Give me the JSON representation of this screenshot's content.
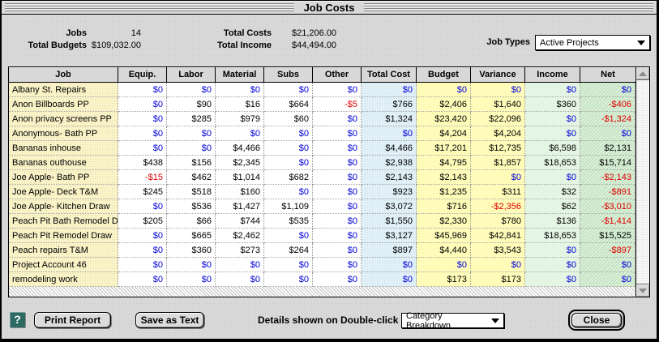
{
  "window": {
    "title": "Job Costs"
  },
  "summary": {
    "jobs_label": "Jobs",
    "jobs_value": "14",
    "total_budgets_label": "Total Budgets",
    "total_budgets_value": "$109,032.00",
    "total_costs_label": "Total Costs",
    "total_costs_value": "$21,206.00",
    "total_income_label": "Total Income",
    "total_income_value": "$44,494.00",
    "job_types_label": "Job Types",
    "job_types_value": "Active Projects"
  },
  "table": {
    "columns": [
      "Job",
      "Equip.",
      "Labor",
      "Material",
      "Subs",
      "Other",
      "Total Cost",
      "Budget",
      "Variance",
      "Income",
      "Net"
    ],
    "rows": [
      {
        "job": "Albany St. Repairs",
        "values": [
          "$0",
          "$0",
          "$0",
          "$0",
          "$0",
          "$0",
          "$0",
          "$0",
          "$0",
          "$0"
        ]
      },
      {
        "job": "Anon Billboards PP",
        "values": [
          "$0",
          "$90",
          "$16",
          "$664",
          "-$5",
          "$766",
          "$2,406",
          "$1,640",
          "$360",
          "-$406"
        ]
      },
      {
        "job": "Anon privacy screens PP",
        "values": [
          "$0",
          "$285",
          "$979",
          "$60",
          "$0",
          "$1,324",
          "$23,420",
          "$22,096",
          "$0",
          "-$1,324"
        ]
      },
      {
        "job": "Anonymous- Bath PP",
        "values": [
          "$0",
          "$0",
          "$0",
          "$0",
          "$0",
          "$0",
          "$4,204",
          "$4,204",
          "$0",
          "$0"
        ]
      },
      {
        "job": "Bananas inhouse",
        "values": [
          "$0",
          "$0",
          "$4,466",
          "$0",
          "$0",
          "$4,466",
          "$17,201",
          "$12,735",
          "$6,598",
          "$2,131"
        ]
      },
      {
        "job": "Bananas outhouse",
        "values": [
          "$438",
          "$156",
          "$2,345",
          "$0",
          "$0",
          "$2,938",
          "$4,795",
          "$1,857",
          "$18,653",
          "$15,714"
        ]
      },
      {
        "job": "Joe Apple- Bath PP",
        "values": [
          "-$15",
          "$462",
          "$1,014",
          "$682",
          "$0",
          "$2,143",
          "$2,143",
          "$0",
          "$0",
          "-$2,143"
        ]
      },
      {
        "job": "Joe Apple- Deck T&M",
        "values": [
          "$245",
          "$518",
          "$160",
          "$0",
          "$0",
          "$923",
          "$1,235",
          "$311",
          "$32",
          "-$891"
        ]
      },
      {
        "job": "Joe Apple- Kitchen Draw",
        "values": [
          "$0",
          "$536",
          "$1,427",
          "$1,109",
          "$0",
          "$3,072",
          "$716",
          "-$2,356",
          "$62",
          "-$3,010"
        ]
      },
      {
        "job": "Peach Pit Bath Remodel Draw",
        "values": [
          "$205",
          "$66",
          "$744",
          "$535",
          "$0",
          "$1,550",
          "$2,330",
          "$780",
          "$136",
          "-$1,414"
        ]
      },
      {
        "job": "Peach Pit Remodel Draw",
        "values": [
          "$0",
          "$665",
          "$2,462",
          "$0",
          "$0",
          "$3,127",
          "$45,969",
          "$42,841",
          "$18,653",
          "$15,525"
        ]
      },
      {
        "job": "Peach repairs T&M",
        "values": [
          "$0",
          "$360",
          "$273",
          "$264",
          "$0",
          "$897",
          "$4,440",
          "$3,543",
          "$0",
          "-$897"
        ]
      },
      {
        "job": "Project Account 46",
        "values": [
          "$0",
          "$0",
          "$0",
          "$0",
          "$0",
          "$0",
          "$0",
          "$0",
          "$0",
          "$0"
        ]
      },
      {
        "job": "remodeling work",
        "values": [
          "$0",
          "$0",
          "$0",
          "$0",
          "$0",
          "$0",
          "$173",
          "$173",
          "$0",
          "$0"
        ]
      }
    ]
  },
  "footer": {
    "help_label": "?",
    "print_report_label": "Print Report",
    "save_as_text_label": "Save as Text",
    "details_label": "Details shown on Double-click",
    "details_value": "Category Breakdown",
    "close_label": "Close"
  },
  "colors": {
    "job_column_bg": "#fbf4c9",
    "total_cost_column_bg": "#e2f0f8",
    "budget_variance_column_bg": "#fffcba",
    "income_column_bg": "#e4f6e3",
    "net_column_bg": "#def1da",
    "zero_value_text": "#0000d8",
    "negative_value_text": "#e00000",
    "positive_value_text": "#000000",
    "help_icon_bg": "#2e6a64"
  }
}
